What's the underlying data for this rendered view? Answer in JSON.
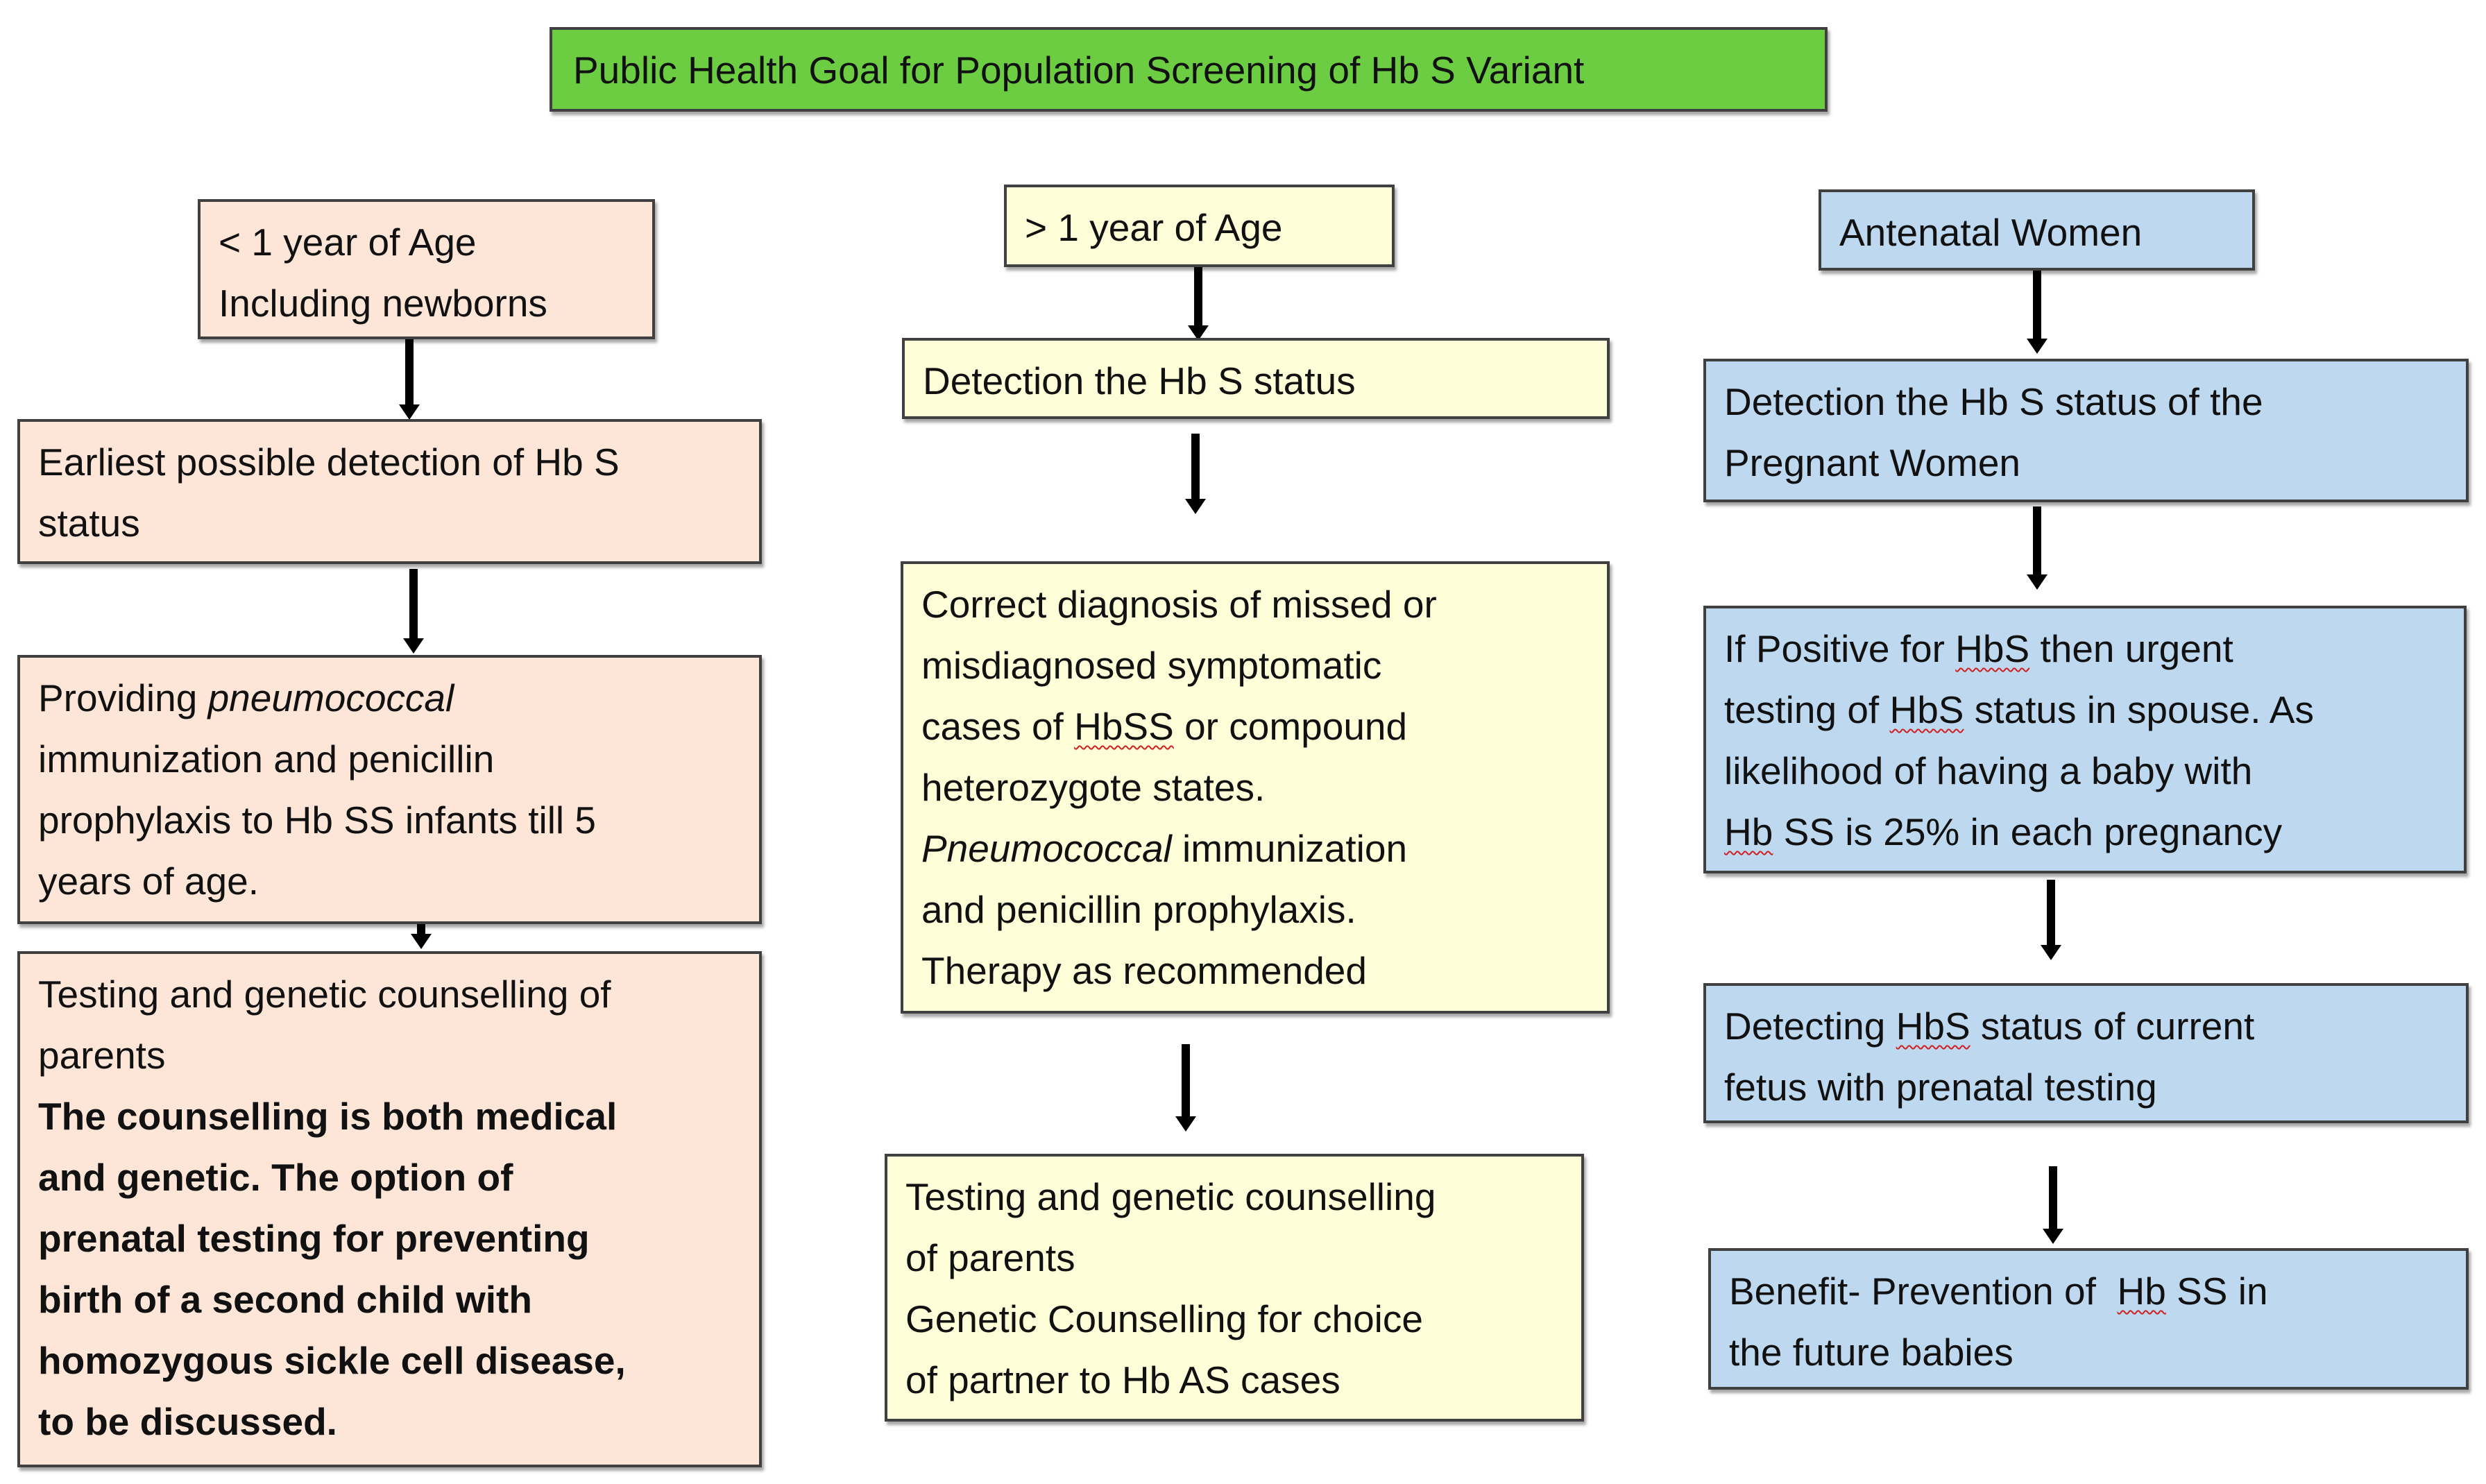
{
  "title": "Public Health Goal for Population Screening of Hb S Variant",
  "colors": {
    "title_bg": "#6ccd42",
    "left_bg": "#fde5d8",
    "middle_bg": "#fefed9",
    "right_bg": "#bdd8ef"
  },
  "left": {
    "b1": [
      "< 1 year of Age",
      "Including newborns"
    ],
    "b2": [
      "Earliest possible detection of Hb S",
      "status"
    ],
    "b3": {
      "l1a": "Providing ",
      "l1b": "pneumococcal",
      "l2": "immunization and penicillin",
      "l3": "prophylaxis to Hb SS infants till 5",
      "l4": "years of age."
    },
    "b4": {
      "normal": [
        "Testing and genetic counselling of",
        "parents"
      ],
      "bold": [
        "The counselling is both medical",
        "and genetic. The option of",
        "prenatal testing for preventing",
        "birth of a second child with",
        "homozygous sickle cell disease,",
        "to be discussed."
      ]
    }
  },
  "middle": {
    "b1": "> 1 year of Age",
    "b2": "Detection the Hb S status",
    "b3": {
      "l1": "Correct diagnosis of missed or",
      "l2": "misdiagnosed symptomatic",
      "l3a": "cases of ",
      "l3b": "HbSS",
      "l3c": " or compound",
      "l4": "heterozygote states.",
      "l5a": "Pneumococcal",
      "l5b": " immunization",
      "l6": "and penicillin prophylaxis.",
      "l7": "Therapy as recommended"
    },
    "b4": [
      "Testing and genetic counselling",
      "of parents",
      "Genetic Counselling for choice",
      "of partner to Hb AS cases"
    ]
  },
  "right": {
    "b1": "Antenatal Women",
    "b2": [
      "Detection the Hb S status of the",
      "Pregnant Women"
    ],
    "b3": {
      "l1a": "If Positive for ",
      "l1b": "HbS",
      "l1c": " then urgent",
      "l2a": "testing of ",
      "l2b": "HbS",
      "l2c": " status in spouse. As",
      "l3": "likelihood of having a baby with",
      "l4a": "Hb",
      "l4b": " SS is 25% in each pregnancy"
    },
    "b4": {
      "l1a": "Detecting ",
      "l1b": "HbS",
      "l1c": " status of current",
      "l2": "fetus with prenatal testing"
    },
    "b5": {
      "l1a": "Benefit- Prevention of  ",
      "l1b": "Hb",
      "l1c": " SS in",
      "l2": "the future babies"
    }
  }
}
